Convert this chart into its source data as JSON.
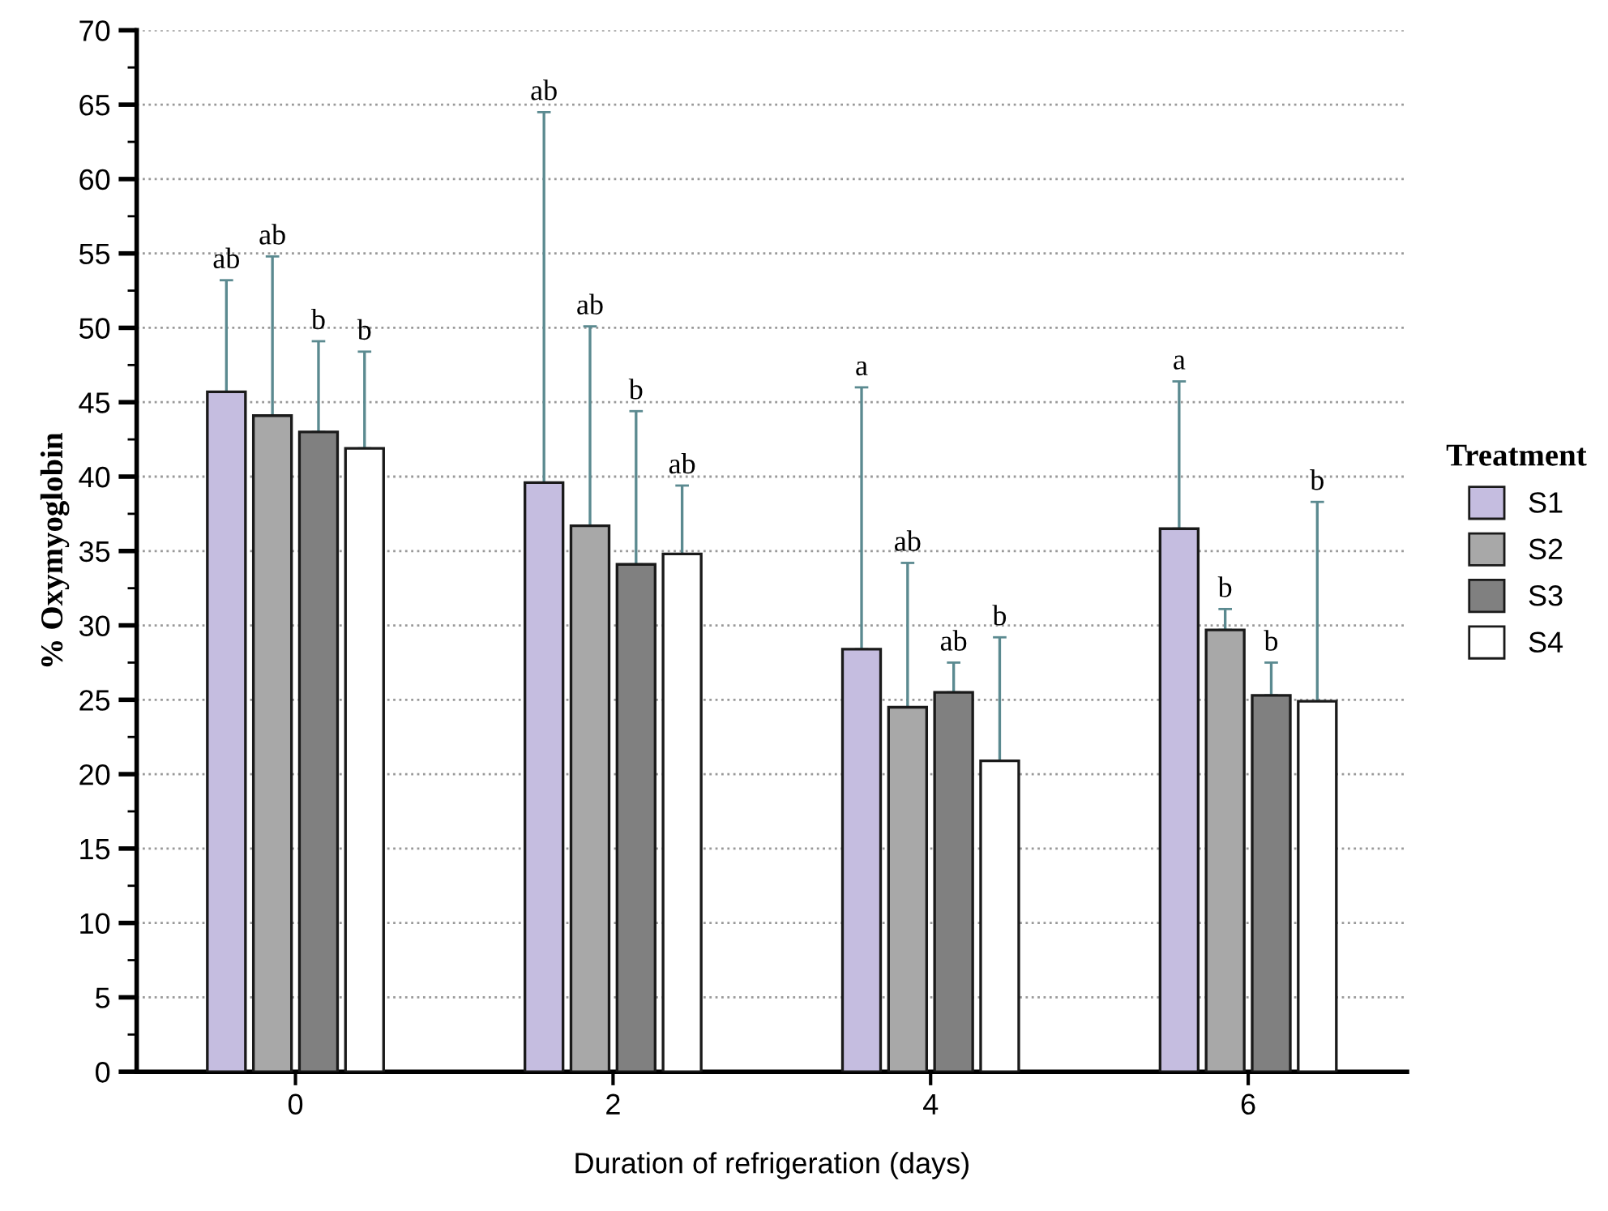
{
  "chart_data": {
    "type": "bar",
    "categories": [
      "0",
      "2",
      "4",
      "6"
    ],
    "xlabel": "Duration of refrigeration (days)",
    "ylabel": "% Oxymyoglobin",
    "legend_title": "Treatment",
    "legend": "right",
    "grid": "y",
    "ylim": [
      0,
      70
    ],
    "yticks": [
      0,
      5,
      10,
      15,
      20,
      25,
      30,
      35,
      40,
      45,
      50,
      55,
      60,
      65,
      70
    ],
    "annotations": [
      "ab",
      "ab",
      "b",
      "b",
      "ab",
      "ab",
      "b",
      "ab",
      "a",
      "ab",
      "ab",
      "b",
      "a",
      "b",
      "b",
      "b"
    ],
    "series": [
      {
        "name": "S1",
        "color": "#c5bde0",
        "values": [
          45.7,
          39.6,
          28.4,
          36.5
        ],
        "errors": [
          [
            45.7,
            53.2
          ],
          [
            39.6,
            64.5
          ],
          [
            28.4,
            46.0
          ],
          [
            36.5,
            46.4
          ]
        ]
      },
      {
        "name": "S2",
        "color": "#a8a8a8",
        "values": [
          44.1,
          36.7,
          24.5,
          29.7
        ],
        "errors": [
          [
            44.1,
            54.8
          ],
          [
            36.7,
            50.1
          ],
          [
            24.5,
            34.2
          ],
          [
            29.7,
            31.1
          ]
        ]
      },
      {
        "name": "S3",
        "color": "#808080",
        "values": [
          43.0,
          34.1,
          25.5,
          25.3
        ],
        "errors": [
          [
            43.0,
            49.1
          ],
          [
            34.1,
            44.4
          ],
          [
            25.5,
            27.5
          ],
          [
            25.3,
            27.5
          ]
        ]
      },
      {
        "name": "S4",
        "color": "#ffffff",
        "values": [
          41.9,
          34.8,
          20.9,
          24.9
        ],
        "errors": [
          [
            41.9,
            48.4
          ],
          [
            34.8,
            39.4
          ],
          [
            20.9,
            29.2
          ],
          [
            24.9,
            38.3
          ]
        ]
      }
    ]
  }
}
